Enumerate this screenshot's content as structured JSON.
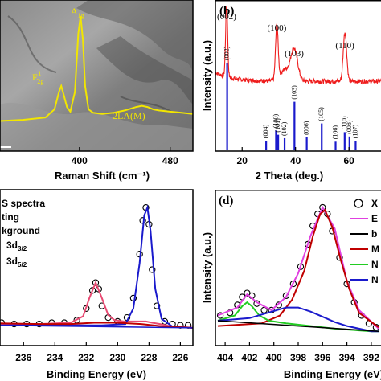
{
  "chart_data": [
    {
      "panel": "a",
      "type": "line",
      "xlabel": "Raman Shift (cm⁻¹)",
      "x_ticks": [
        "400",
        "480"
      ],
      "xlim": [
        330,
        500
      ],
      "background": "TEM micrograph",
      "series": [
        {
          "color": "#f2e600",
          "x": [
            330,
            350,
            370,
            378,
            382,
            384,
            386,
            389,
            392,
            396,
            399,
            401,
            403,
            405,
            408,
            412,
            420,
            430,
            440,
            450,
            455,
            460,
            465,
            470,
            480,
            490,
            500
          ],
          "y": [
            0.1,
            0.11,
            0.13,
            0.2,
            0.35,
            0.4,
            0.33,
            0.22,
            0.18,
            0.35,
            0.85,
            1.0,
            0.8,
            0.4,
            0.2,
            0.17,
            0.16,
            0.17,
            0.19,
            0.22,
            0.23,
            0.22,
            0.2,
            0.19,
            0.18,
            0.17,
            0.16
          ]
        }
      ],
      "annotations": {
        "a1g": "A",
        "a1g_sub": "1g",
        "e2g": "E",
        "e2g_sup": "1",
        "e2g_sub": "2g",
        "la": "2LA(M)"
      }
    },
    {
      "panel": "b",
      "type": "line+bar",
      "title": "(b)",
      "xlabel": "2 Theta (deg.)",
      "ylabel": "Intensity (a.u.)",
      "x_ticks": [
        20,
        40,
        60
      ],
      "xlim": [
        10,
        72
      ],
      "xrd_color": "#ee1c1c",
      "ref_color": "#1a1acc",
      "xrd_peaks": [
        {
          "hkl": "(002)",
          "x": 14.2
        },
        {
          "hkl": "(100)",
          "x": 33.0
        },
        {
          "hkl": "(103)",
          "x": 39.5
        },
        {
          "hkl": "(110)",
          "x": 58.5
        }
      ],
      "ref_lines": [
        {
          "hkl": "(002)",
          "x": 14.4,
          "h": 1.0
        },
        {
          "hkl": "(004)",
          "x": 29.0,
          "h": 0.1
        },
        {
          "hkl": "(100)",
          "x": 32.7,
          "h": 0.22
        },
        {
          "hkl": "(101)",
          "x": 33.5,
          "h": 0.17
        },
        {
          "hkl": "(102)",
          "x": 35.9,
          "h": 0.13
        },
        {
          "hkl": "(103)",
          "x": 39.6,
          "h": 0.55
        },
        {
          "hkl": "(006)",
          "x": 44.2,
          "h": 0.14
        },
        {
          "hkl": "(105)",
          "x": 49.8,
          "h": 0.3
        },
        {
          "hkl": "(106)",
          "x": 55.0,
          "h": 0.09
        },
        {
          "hkl": "(110)",
          "x": 58.4,
          "h": 0.2
        },
        {
          "hkl": "(008)",
          "x": 60.2,
          "h": 0.15
        },
        {
          "hkl": "(107)",
          "x": 62.5,
          "h": 0.1
        }
      ]
    },
    {
      "panel": "c",
      "type": "line",
      "xlabel": "Binding Energy (eV)",
      "x_ticks": [
        236,
        234,
        232,
        230,
        228,
        226
      ],
      "xlim": [
        237.5,
        225.2
      ],
      "legend": [
        "S spectra",
        "ting",
        "kground",
        "3d",
        "3d"
      ],
      "legend_subs": [
        "3/2",
        "5/2"
      ],
      "series": [
        {
          "name": "",
          "color": "#000000",
          "style": "circles",
          "x": [
            237.4,
            236.6,
            235.8,
            235.0,
            234.2,
            233.4,
            232.6,
            232.0,
            231.6,
            231.4,
            231.2,
            231.0,
            230.6,
            230.0,
            229.4,
            229.0,
            228.6,
            228.4,
            228.2,
            228.0,
            227.8,
            227.5,
            227.0,
            226.5,
            226.0,
            225.5
          ],
          "y": [
            0.09,
            0.08,
            0.08,
            0.08,
            0.09,
            0.09,
            0.11,
            0.2,
            0.34,
            0.4,
            0.35,
            0.22,
            0.13,
            0.1,
            0.13,
            0.28,
            0.62,
            0.88,
            0.98,
            0.85,
            0.5,
            0.22,
            0.1,
            0.08,
            0.07,
            0.07
          ]
        },
        {
          "name": "",
          "color": "#e84a72",
          "style": "line",
          "x": [
            237.5,
            235.0,
            233.0,
            232.2,
            231.8,
            231.4,
            231.0,
            230.6,
            230.2,
            229.6,
            229.0,
            228.6,
            228.2,
            227.8,
            227.3,
            226.5,
            225.2
          ],
          "y": [
            0.08,
            0.08,
            0.09,
            0.14,
            0.28,
            0.4,
            0.28,
            0.15,
            0.11,
            0.1,
            0.1,
            0.1,
            0.1,
            0.09,
            0.08,
            0.06,
            0.05
          ]
        },
        {
          "name": "",
          "color": "#1a1acc",
          "style": "line",
          "x": [
            237.5,
            234.0,
            231.0,
            229.5,
            229.0,
            228.6,
            228.3,
            228.1,
            227.9,
            227.6,
            227.2,
            226.5,
            225.2
          ],
          "y": [
            0.07,
            0.07,
            0.07,
            0.08,
            0.2,
            0.55,
            0.92,
            0.98,
            0.8,
            0.35,
            0.12,
            0.06,
            0.05
          ]
        },
        {
          "name": "",
          "color": "#c00000",
          "style": "line",
          "x": [
            237.5,
            235.0,
            233.0,
            231.5,
            230.0,
            228.5,
            227.0,
            225.2
          ],
          "y": [
            0.085,
            0.08,
            0.08,
            0.09,
            0.09,
            0.08,
            0.06,
            0.05
          ]
        },
        {
          "name": "",
          "color": "#1a1acc",
          "style": "baseline",
          "x": [
            237.5,
            225.2
          ],
          "y": [
            0.07,
            0.05
          ]
        }
      ]
    },
    {
      "panel": "d",
      "type": "line",
      "title": "(d)",
      "xlabel": "Binding Energy (eV)",
      "ylabel": "Intensity (a.u.)",
      "x_ticks": [
        404,
        402,
        400,
        398,
        396,
        394,
        392
      ],
      "xlim": [
        404.8,
        391.2
      ],
      "legend": [
        "X",
        "E",
        "b",
        "M",
        "N",
        "N"
      ],
      "legend_colors": [
        "#000000",
        "#e040e0",
        "#000000",
        "#c00000",
        "#22cc22",
        "#1a1acc"
      ],
      "series": [
        {
          "name": "",
          "color": "#000000",
          "style": "circles",
          "x": [
            404.4,
            403.6,
            403.0,
            402.6,
            402.2,
            401.8,
            401.4,
            400.8,
            400.2,
            399.6,
            399.0,
            398.4,
            397.8,
            397.2,
            396.8,
            396.4,
            396.0,
            395.6,
            395.2,
            394.6,
            394.0,
            393.4,
            392.8,
            392.2,
            391.6
          ],
          "y": [
            0.18,
            0.2,
            0.26,
            0.32,
            0.35,
            0.33,
            0.27,
            0.22,
            0.22,
            0.26,
            0.33,
            0.42,
            0.55,
            0.72,
            0.86,
            0.95,
            1.0,
            0.95,
            0.82,
            0.62,
            0.42,
            0.28,
            0.18,
            0.12,
            0.09
          ]
        },
        {
          "name": "",
          "color": "#e040e0",
          "style": "line",
          "x": [
            404.6,
            403.0,
            402.2,
            401.4,
            400.2,
            399.0,
            398.0,
            397.0,
            396.0,
            395.0,
            394.0,
            393.0,
            391.4
          ],
          "y": [
            0.18,
            0.24,
            0.34,
            0.28,
            0.22,
            0.32,
            0.5,
            0.78,
            1.0,
            0.84,
            0.44,
            0.22,
            0.08
          ]
        },
        {
          "name": "",
          "color": "#c00000",
          "style": "line",
          "x": [
            404.6,
            401.0,
            399.5,
            398.5,
            397.5,
            396.8,
            396.2,
            395.8,
            395.2,
            394.5,
            393.8,
            393.0,
            391.4
          ],
          "y": [
            0.1,
            0.12,
            0.18,
            0.3,
            0.52,
            0.78,
            0.95,
            0.98,
            0.85,
            0.6,
            0.38,
            0.2,
            0.09
          ]
        },
        {
          "name": "",
          "color": "#22cc22",
          "style": "line",
          "x": [
            404.6,
            403.2,
            402.6,
            402.2,
            401.8,
            401.2,
            400.4,
            399.0,
            397.0,
            395.0,
            392.0,
            391.4
          ],
          "y": [
            0.14,
            0.18,
            0.25,
            0.28,
            0.25,
            0.18,
            0.14,
            0.12,
            0.1,
            0.08,
            0.06,
            0.06
          ]
        },
        {
          "name": "",
          "color": "#1a1acc",
          "style": "line",
          "x": [
            404.6,
            402.0,
            400.5,
            399.0,
            398.0,
            397.0,
            396.0,
            395.0,
            394.0,
            393.0,
            392.0,
            391.4
          ],
          "y": [
            0.14,
            0.16,
            0.2,
            0.24,
            0.24,
            0.21,
            0.17,
            0.13,
            0.1,
            0.08,
            0.06,
            0.06
          ]
        },
        {
          "name": "",
          "color": "#000000",
          "style": "baseline",
          "x": [
            404.6,
            391.4
          ],
          "y": [
            0.14,
            0.06
          ]
        }
      ]
    }
  ]
}
